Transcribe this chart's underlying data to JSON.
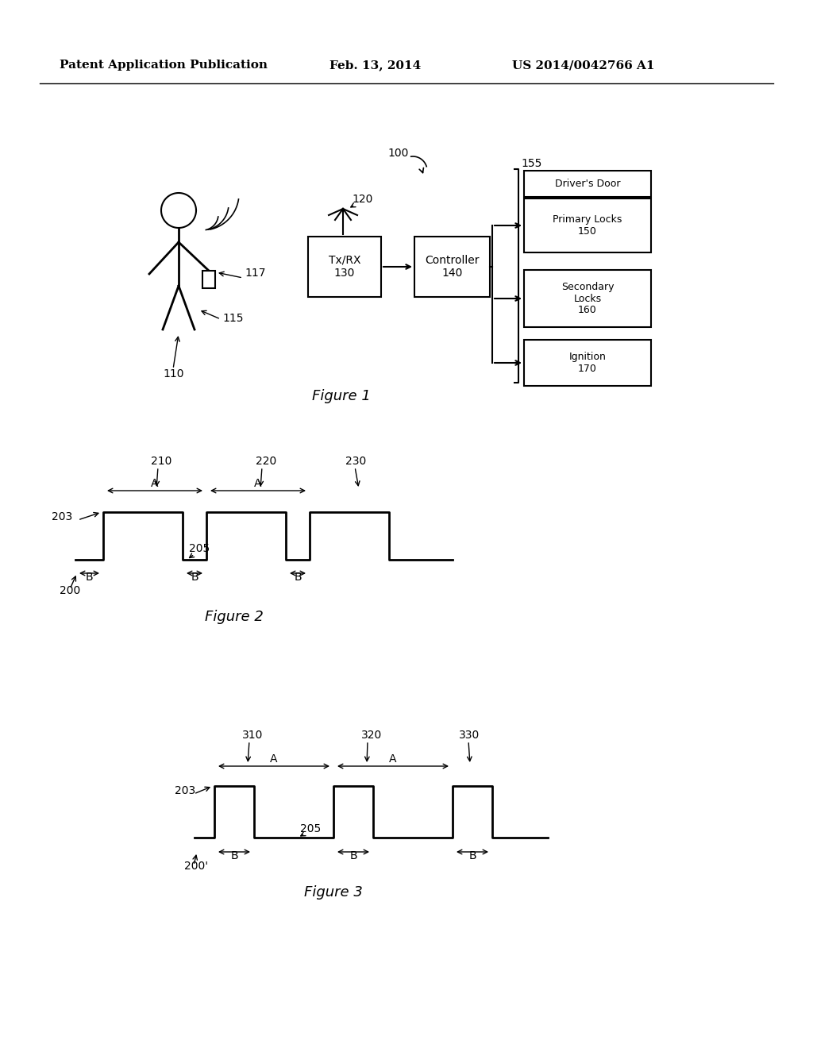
{
  "bg_color": "#ffffff",
  "header_left": "Patent Application Publication",
  "header_center": "Feb. 13, 2014",
  "header_right": "US 2014/0042766 A1",
  "fig1_label": "Figure 1",
  "fig2_label": "Figure 2",
  "fig3_label": "Figure 3"
}
